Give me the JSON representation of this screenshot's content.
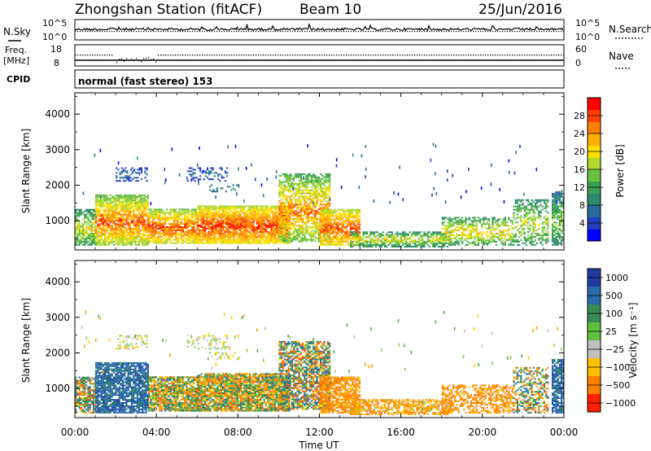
{
  "header": {
    "station": "Zhongshan Station (fitACF)",
    "beam": "Beam 10",
    "date": "25/Jun/2016"
  },
  "strips": {
    "nsky_label": "N.Sky",
    "nsky_ticks": [
      "10^5",
      "10^0"
    ],
    "nsearch_label": "N.Search",
    "nsearch_ticks": [
      "10^5",
      "10^0"
    ],
    "freq_label": "Freq.",
    "freq_unit": "[MHz]",
    "freq_ticks": [
      "18",
      "8"
    ],
    "nave_label": "Nave",
    "nave_ticks": [
      "60",
      "0"
    ],
    "cpid_label": "CPID",
    "cpid_text": "normal (fast stereo) 153"
  },
  "chart_data": [
    {
      "type": "heatmap",
      "name": "power-panel",
      "ylabel": "Slant Range [km]",
      "y_ticks": [
        "4000",
        "3000",
        "2000",
        "1000"
      ],
      "y_tick_values": [
        4000,
        3000,
        2000,
        1000
      ],
      "ylim": [
        180,
        4600
      ],
      "xlim_hours": [
        0,
        24
      ],
      "colorbar_label": "Power [dB]",
      "colorbar_ticks": [
        "28",
        "24",
        "20",
        "16",
        "12",
        "8",
        "4"
      ],
      "colorbar_tick_values": [
        28,
        24,
        20,
        16,
        12,
        8,
        4
      ],
      "scale": [
        0,
        32
      ],
      "colors": [
        "#0000ff",
        "#2040c0",
        "#2a6a9a",
        "#2e8a6a",
        "#3aa050",
        "#6ac040",
        "#b0d830",
        "#ffe000",
        "#ffb000",
        "#ff8000",
        "#ff4000",
        "#ff0000"
      ]
    },
    {
      "type": "heatmap",
      "name": "velocity-panel",
      "ylabel": "Slant Range [km]",
      "y_ticks": [
        "4000",
        "3000",
        "2000",
        "1000"
      ],
      "y_tick_values": [
        4000,
        3000,
        2000,
        1000
      ],
      "ylim": [
        180,
        4600
      ],
      "xlim_hours": [
        0,
        24
      ],
      "colorbar_label": "Velocity [m s⁻¹]",
      "colorbar_ticks": [
        "1000",
        "500",
        "100",
        "25",
        "−25",
        "−100",
        "−500",
        "−1000"
      ],
      "colorbar_colors": [
        "#1e3ca0",
        "#2a6aa8",
        "#3a8a5a",
        "#60c040",
        "#c0c0c0",
        "#ffc000",
        "#ff8000",
        "#ff2000"
      ],
      "colors_neg": [
        "#ffd000",
        "#ffa000",
        "#ff8000",
        "#ff5000"
      ],
      "colors_pos": [
        "#80d040",
        "#50b040",
        "#2a8060",
        "#2a70b0",
        "#2050a0"
      ]
    }
  ],
  "x_axis": {
    "ticks": [
      "00:00",
      "04:00",
      "08:00",
      "12:00",
      "16:00",
      "20:00",
      "00:00"
    ],
    "tick_hours": [
      0,
      4,
      8,
      12,
      16,
      20,
      24
    ],
    "label": "Time UT"
  }
}
